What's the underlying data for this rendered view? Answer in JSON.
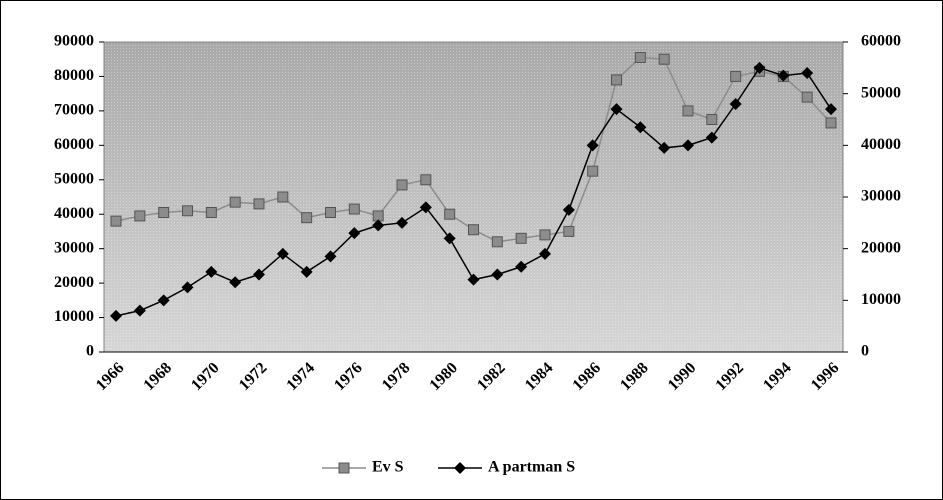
{
  "chart_data": {
    "type": "line",
    "categories": [
      "1966",
      null,
      "1968",
      null,
      "1970",
      null,
      "1972",
      null,
      "1974",
      null,
      "1976",
      null,
      "1978",
      null,
      "1980",
      null,
      "1982",
      null,
      "1984",
      null,
      "1986",
      null,
      "1988",
      null,
      "1990",
      null,
      "1992",
      null,
      "1994",
      null,
      "1996"
    ],
    "series": [
      {
        "name": "Ev S",
        "color": "#8c8c8c",
        "marker": "square",
        "values": [
          38000,
          39500,
          40500,
          41000,
          40500,
          43500,
          43000,
          45000,
          39000,
          40500,
          41500,
          39500,
          48500,
          50000,
          40000,
          35500,
          32000,
          33000,
          34000,
          35000,
          52500,
          79000,
          85500,
          85000,
          70000,
          67500,
          80000,
          81500,
          80000,
          74000,
          66500
        ]
      },
      {
        "name": "A partman S",
        "color": "#000000",
        "marker": "diamond",
        "axis": "y2",
        "values": [
          7000,
          8000,
          10000,
          12500,
          15500,
          13500,
          15000,
          19000,
          15500,
          18500,
          23000,
          24500,
          25000,
          28000,
          22000,
          14000,
          15000,
          16500,
          19000,
          27500,
          40000,
          47000,
          43500,
          39500,
          40000,
          41500,
          48000,
          55000,
          53500,
          54000,
          47000
        ]
      }
    ],
    "ylim": [
      0,
      90000
    ],
    "yticks": [
      0,
      10000,
      20000,
      30000,
      40000,
      50000,
      60000,
      70000,
      80000,
      90000
    ],
    "y2lim": [
      0,
      60000
    ],
    "y2ticks": [
      0,
      10000,
      20000,
      30000,
      40000,
      50000,
      60000
    ],
    "legend": "bottom"
  }
}
